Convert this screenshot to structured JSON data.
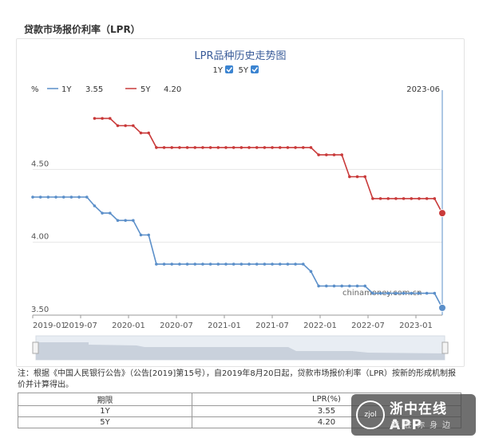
{
  "page": {
    "section_title": "贷款市场报价利率（LPR）"
  },
  "chart_data": {
    "type": "line",
    "title": "LPR品种历史走势图",
    "toggles": [
      {
        "label": "1Y",
        "checked": true
      },
      {
        "label": "5Y",
        "checked": true
      }
    ],
    "ylabel": "%",
    "ylim": [
      3.5,
      5.0
    ],
    "yticks": [
      "3.50",
      "4.00",
      "4.50"
    ],
    "xticks": [
      "2019-01",
      "2019-07",
      "2020-01",
      "2020-07",
      "2021-01",
      "2021-07",
      "2022-01",
      "2022-07",
      "2023-01"
    ],
    "tooltip_date": "2023-06",
    "legend": [
      {
        "name": "1Y",
        "value": "3.55"
      },
      {
        "name": "5Y",
        "value": "4.20"
      }
    ],
    "watermark": "chinamoney.com.cn",
    "series": [
      {
        "name": "1Y",
        "color": "#5b8fc9",
        "values": [
          4.31,
          4.31,
          4.31,
          4.31,
          4.31,
          4.31,
          4.31,
          4.31,
          4.25,
          4.2,
          4.2,
          4.15,
          4.15,
          4.15,
          4.05,
          4.05,
          3.85,
          3.85,
          3.85,
          3.85,
          3.85,
          3.85,
          3.85,
          3.85,
          3.85,
          3.85,
          3.85,
          3.85,
          3.85,
          3.85,
          3.85,
          3.85,
          3.85,
          3.85,
          3.85,
          3.85,
          3.8,
          3.7,
          3.7,
          3.7,
          3.7,
          3.7,
          3.7,
          3.7,
          3.65,
          3.65,
          3.65,
          3.65,
          3.65,
          3.65,
          3.65,
          3.65,
          3.65,
          3.55
        ]
      },
      {
        "name": "5Y",
        "color": "#c93a3a",
        "values": [
          null,
          null,
          null,
          null,
          null,
          null,
          null,
          null,
          4.85,
          4.85,
          4.85,
          4.8,
          4.8,
          4.8,
          4.75,
          4.75,
          4.65,
          4.65,
          4.65,
          4.65,
          4.65,
          4.65,
          4.65,
          4.65,
          4.65,
          4.65,
          4.65,
          4.65,
          4.65,
          4.65,
          4.65,
          4.65,
          4.65,
          4.65,
          4.65,
          4.65,
          4.65,
          4.6,
          4.6,
          4.6,
          4.6,
          4.45,
          4.45,
          4.45,
          4.3,
          4.3,
          4.3,
          4.3,
          4.3,
          4.3,
          4.3,
          4.3,
          4.3,
          4.2
        ]
      }
    ]
  },
  "note": "注：根据《中国人民银行公告》（公告[2019]第15号），自2019年8月20日起，贷款市场报价利率（LPR）按新的形成机制报价并计算得出。",
  "table": {
    "headers": [
      "期限",
      "LPR(%)"
    ],
    "rows": [
      {
        "term": "1Y",
        "rate": "3.55"
      },
      {
        "term": "5Y",
        "rate": "4.20"
      }
    ]
  },
  "watermark_app": {
    "name": "浙中在线APP",
    "sub": "就在你身边",
    "logo": "zjol"
  }
}
